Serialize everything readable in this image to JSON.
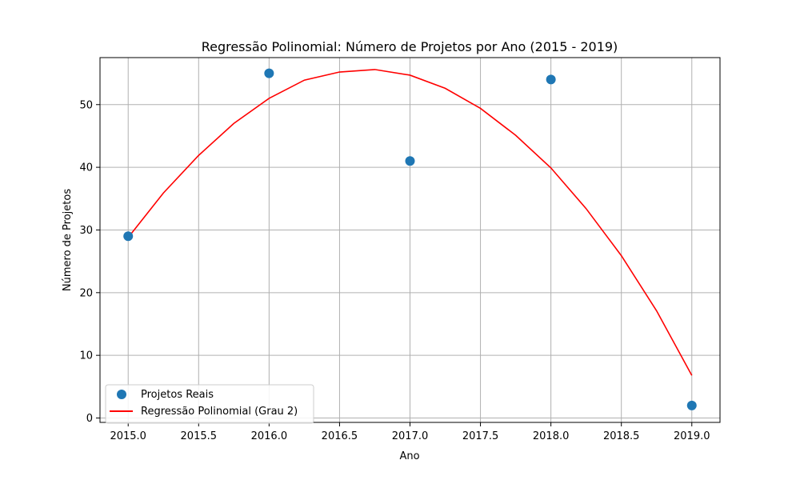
{
  "chart_data": {
    "type": "scatter",
    "title": "Regressão Polinomial: Número de Projetos por Ano (2015 - 2019)",
    "xlabel": "Ano",
    "ylabel": "Número de Projetos",
    "xlim": [
      2014.8,
      2019.2
    ],
    "ylim": [
      -0.7,
      57.5
    ],
    "xticks": [
      2015.0,
      2015.5,
      2016.0,
      2016.5,
      2017.0,
      2017.5,
      2018.0,
      2018.5,
      2019.0
    ],
    "xtick_labels": [
      "2015.0",
      "2015.5",
      "2016.0",
      "2016.5",
      "2017.0",
      "2017.5",
      "2018.0",
      "2018.5",
      "2019.0"
    ],
    "yticks": [
      0,
      10,
      20,
      30,
      40,
      50
    ],
    "ytick_labels": [
      "0",
      "10",
      "20",
      "30",
      "40",
      "50"
    ],
    "grid": true,
    "legend_position": "lower-left",
    "series": [
      {
        "name": "Projetos Reais",
        "kind": "scatter",
        "color": "#1f77b4",
        "x": [
          2015,
          2016,
          2017,
          2018,
          2019
        ],
        "y": [
          29,
          55,
          41,
          54,
          2
        ]
      },
      {
        "name": "Regressão Polinomial (Grau 2)",
        "kind": "line",
        "color": "#ff0000",
        "x": [
          2015.0,
          2015.25,
          2015.5,
          2015.75,
          2016.0,
          2016.25,
          2016.5,
          2016.75,
          2017.0,
          2017.25,
          2017.5,
          2017.75,
          2018.0,
          2018.25,
          2018.5,
          2018.75,
          2019.0
        ],
        "y": [
          28.8,
          35.9,
          41.9,
          47.0,
          51.0,
          53.9,
          55.2,
          55.6,
          54.7,
          52.6,
          49.4,
          45.1,
          39.9,
          33.4,
          25.9,
          17.1,
          6.8
        ]
      }
    ]
  }
}
